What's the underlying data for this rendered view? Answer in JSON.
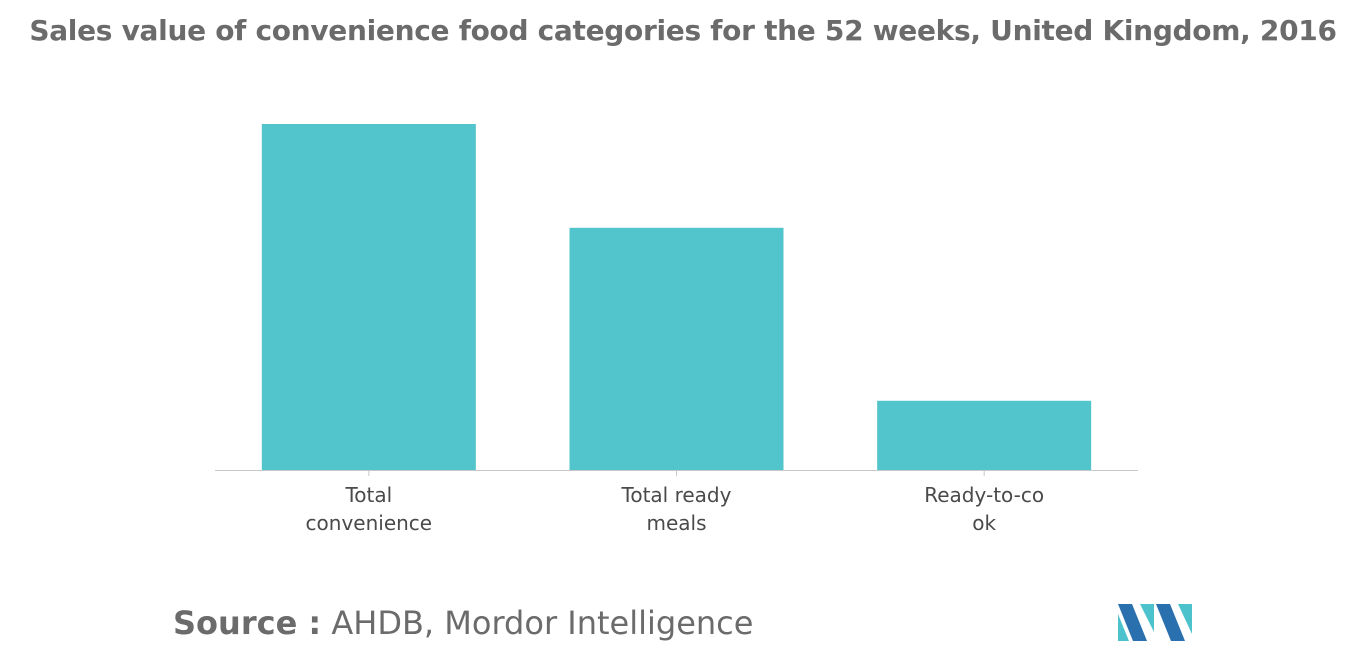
{
  "chart_data": {
    "type": "bar",
    "title": "Sales value of convenience food categories for the 52 weeks, United Kingdom, 2016",
    "categories": [
      [
        "Total",
        "convenience"
      ],
      [
        "Total ready",
        "meals"
      ],
      [
        "Ready-to-co",
        "ok"
      ]
    ],
    "values": [
      100,
      70,
      20
    ],
    "ylim": [
      0,
      100
    ],
    "xlabel": "",
    "ylabel": "",
    "grid": false,
    "bar_color": "#52c4cb",
    "axis_color": "#c8c8c8"
  },
  "source": {
    "label": "Source :",
    "text": " AHDB, Mordor Intelligence"
  },
  "logo": {
    "icon": "mordor-intelligence-logo-icon",
    "colors": [
      "#2a6fae",
      "#4cc3cc"
    ]
  }
}
